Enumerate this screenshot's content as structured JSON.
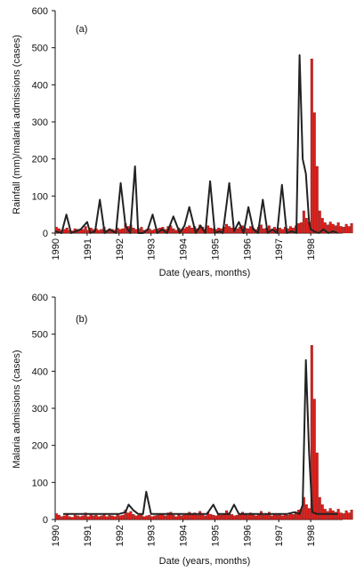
{
  "chart_data": [
    {
      "type": "bar",
      "panel_label": "(a)",
      "ylabel": "Rainfall (mm)/malaria admissions (cases)",
      "xlabel": "Date (years, months)",
      "ylim": [
        0,
        600
      ],
      "yticks": [
        0,
        100,
        200,
        300,
        400,
        500,
        600
      ],
      "xlim": [
        1990,
        1999
      ],
      "xticks": [
        "1990",
        "1991",
        "1992",
        "1993",
        "1994",
        "1995",
        "1996",
        "1997",
        "1998"
      ],
      "bar_color": "#e0201c",
      "line_color": "#222222",
      "series": [
        {
          "kind": "bar",
          "x_start": 1990.0,
          "step": 0.0833,
          "values": [
            16,
            12,
            8,
            10,
            14,
            8,
            6,
            12,
            10,
            8,
            10,
            18,
            8,
            14,
            10,
            12,
            8,
            10,
            16,
            8,
            12,
            10,
            8,
            14,
            10,
            12,
            26,
            18,
            22,
            14,
            10,
            12,
            16,
            8,
            10,
            12,
            8,
            10,
            12,
            14,
            16,
            10,
            18,
            20,
            12,
            8,
            14,
            10,
            12,
            16,
            20,
            14,
            18,
            12,
            22,
            16,
            10,
            20,
            14,
            12,
            10,
            14,
            12,
            16,
            24,
            18,
            14,
            10,
            12,
            16,
            20,
            14,
            12,
            18,
            14,
            10,
            16,
            22,
            12,
            14,
            20,
            10,
            16,
            12,
            14,
            10,
            16,
            12,
            18,
            14,
            20,
            26,
            28,
            60,
            40,
            30,
            470,
            325,
            180,
            60,
            40,
            28,
            22,
            30,
            24,
            20,
            28,
            18,
            16,
            24,
            18,
            26
          ]
        },
        {
          "kind": "line",
          "x": [
            1990.0,
            1990.2,
            1990.35,
            1990.5,
            1990.65,
            1990.8,
            1991.0,
            1991.1,
            1991.25,
            1991.4,
            1991.55,
            1991.7,
            1991.9,
            1992.05,
            1992.2,
            1992.35,
            1992.5,
            1992.6,
            1992.75,
            1992.9,
            1993.05,
            1993.2,
            1993.35,
            1993.5,
            1993.7,
            1993.9,
            1994.05,
            1994.2,
            1994.4,
            1994.55,
            1994.7,
            1994.85,
            1995.0,
            1995.15,
            1995.25,
            1995.45,
            1995.6,
            1995.75,
            1995.9,
            1996.05,
            1996.2,
            1996.35,
            1996.5,
            1996.65,
            1996.8,
            1996.95,
            1997.1,
            1997.25,
            1997.4,
            1997.55,
            1997.65,
            1997.75,
            1997.85,
            1997.95,
            1998.0,
            1998.1,
            1998.25,
            1998.4,
            1998.55,
            1998.7,
            1998.85
          ],
          "values": [
            5,
            0,
            50,
            0,
            5,
            10,
            30,
            0,
            5,
            90,
            0,
            10,
            0,
            135,
            20,
            0,
            180,
            0,
            0,
            10,
            50,
            0,
            10,
            0,
            45,
            0,
            20,
            70,
            0,
            20,
            0,
            140,
            0,
            5,
            0,
            135,
            5,
            30,
            0,
            70,
            10,
            0,
            90,
            0,
            10,
            0,
            130,
            0,
            5,
            0,
            480,
            200,
            160,
            30,
            10,
            5,
            0,
            10,
            0,
            5,
            0
          ]
        }
      ]
    },
    {
      "type": "bar",
      "panel_label": "(b)",
      "ylabel": "Malaria admissions (cases)",
      "xlabel": "Date (years, months)",
      "ylim": [
        0,
        600
      ],
      "yticks": [
        0,
        100,
        200,
        300,
        400,
        500,
        600
      ],
      "xlim": [
        1990,
        1999
      ],
      "xticks": [
        "1990",
        "1991",
        "1992",
        "1993",
        "1994",
        "1995",
        "1996",
        "1997",
        "1998"
      ],
      "bar_color": "#e0201c",
      "line_color": "#222222",
      "series": [
        {
          "kind": "bar",
          "x_start": 1990.0,
          "step": 0.0833,
          "values": [
            16,
            12,
            8,
            10,
            14,
            8,
            6,
            12,
            10,
            8,
            10,
            18,
            8,
            14,
            10,
            12,
            8,
            10,
            16,
            8,
            12,
            10,
            8,
            14,
            10,
            12,
            26,
            18,
            22,
            14,
            10,
            12,
            16,
            8,
            10,
            12,
            8,
            10,
            12,
            14,
            16,
            10,
            18,
            20,
            12,
            8,
            14,
            10,
            12,
            16,
            20,
            14,
            18,
            12,
            22,
            16,
            10,
            20,
            14,
            12,
            10,
            14,
            12,
            16,
            24,
            18,
            14,
            10,
            12,
            16,
            20,
            14,
            12,
            18,
            14,
            10,
            16,
            22,
            12,
            14,
            20,
            10,
            16,
            12,
            14,
            10,
            16,
            12,
            18,
            14,
            20,
            26,
            28,
            60,
            40,
            30,
            470,
            325,
            180,
            60,
            40,
            28,
            22,
            30,
            24,
            20,
            28,
            18,
            16,
            24,
            18,
            26
          ]
        },
        {
          "kind": "line",
          "x": [
            1990.25,
            1990.5,
            1990.75,
            1991.0,
            1991.25,
            1991.5,
            1991.75,
            1992.0,
            1992.2,
            1992.3,
            1992.45,
            1992.6,
            1992.75,
            1992.85,
            1993.0,
            1993.25,
            1993.5,
            1993.75,
            1994.0,
            1994.25,
            1994.5,
            1994.75,
            1994.95,
            1995.1,
            1995.25,
            1995.45,
            1995.6,
            1995.75,
            1996.0,
            1996.25,
            1996.5,
            1996.75,
            1997.0,
            1997.25,
            1997.5,
            1997.65,
            1997.75,
            1997.85,
            1997.95,
            1998.05,
            1998.2,
            1998.4,
            1998.6,
            1998.85
          ],
          "values": [
            15,
            15,
            15,
            15,
            15,
            15,
            15,
            15,
            20,
            40,
            25,
            15,
            15,
            75,
            15,
            15,
            15,
            15,
            15,
            15,
            15,
            15,
            40,
            15,
            15,
            15,
            40,
            15,
            15,
            15,
            15,
            15,
            15,
            15,
            20,
            15,
            40,
            430,
            180,
            20,
            15,
            15,
            15,
            15
          ]
        }
      ]
    }
  ]
}
